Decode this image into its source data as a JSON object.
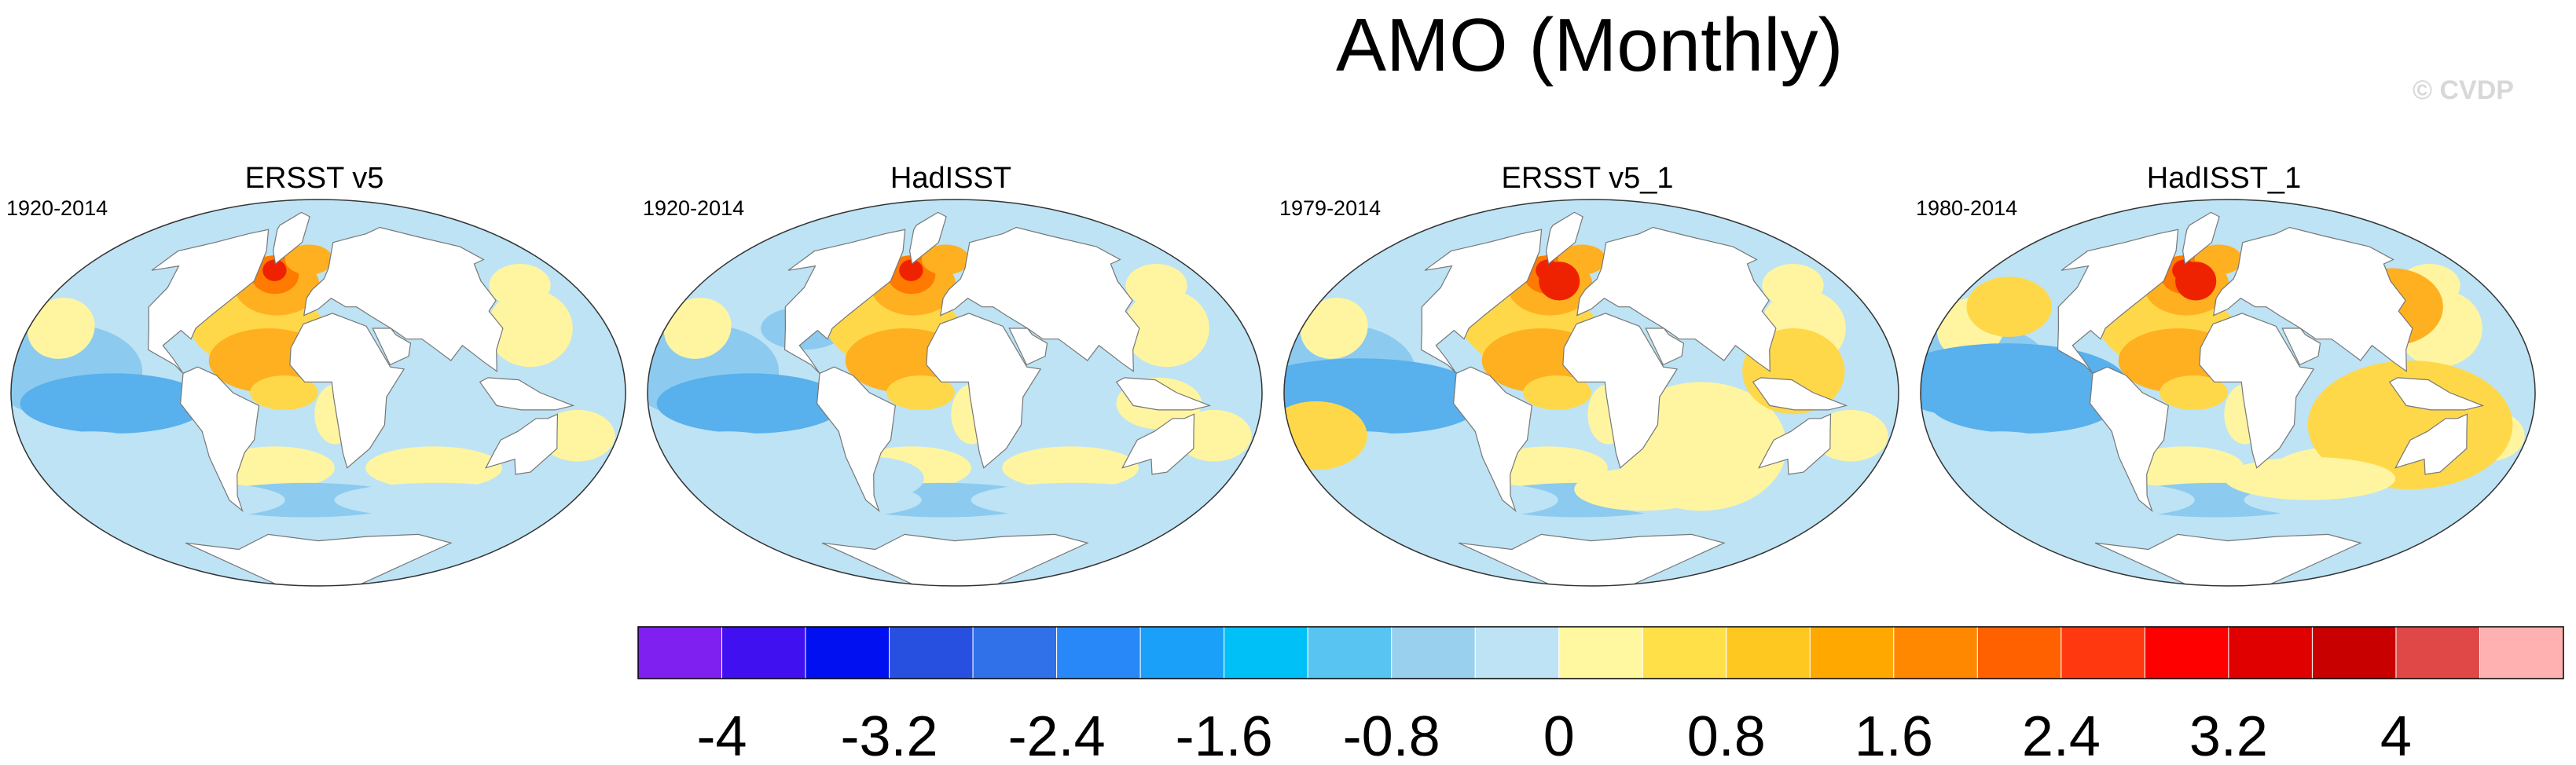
{
  "figure": {
    "title": "AMO (Monthly)",
    "credit": "© CVDP"
  },
  "panels": [
    {
      "title": "ERSST v5",
      "years": "1920-2014",
      "pattern": 0
    },
    {
      "title": "HadISST",
      "years": "1920-2014",
      "pattern": 1
    },
    {
      "title": "ERSST v5_1",
      "years": "1979-2014",
      "pattern": 2
    },
    {
      "title": "HadISST_1",
      "years": "1980-2014",
      "pattern": 3
    }
  ],
  "colorbar": {
    "colors": [
      "#8020f0",
      "#4010f0",
      "#0010f0",
      "#2850e0",
      "#3070e8",
      "#2888f8",
      "#1aa0f8",
      "#00c0f8",
      "#58c4f2",
      "#98d0ee",
      "#bde3f5",
      "#fff8a0",
      "#ffe048",
      "#ffc820",
      "#ffa800",
      "#ff8800",
      "#ff6000",
      "#ff3810",
      "#ff0000",
      "#e00000",
      "#c80000",
      "#e04848",
      "#ffb0b0"
    ],
    "labels": [
      "-4",
      "-3.2",
      "-2.4",
      "-1.6",
      "-0.8",
      "0",
      "0.8",
      "1.6",
      "2.4",
      "3.2",
      "4"
    ]
  },
  "palette": {
    "land": "#ffffff",
    "coast": "#777777",
    "deep_blue": "#58b0ec",
    "blue": "#8ccbef",
    "light_blue": "#bde3f5",
    "yellow": "#fff5a0",
    "gold": "#ffd84a",
    "orange": "#ffb020",
    "dark_orange": "#ff7a00",
    "red": "#ee2200"
  }
}
